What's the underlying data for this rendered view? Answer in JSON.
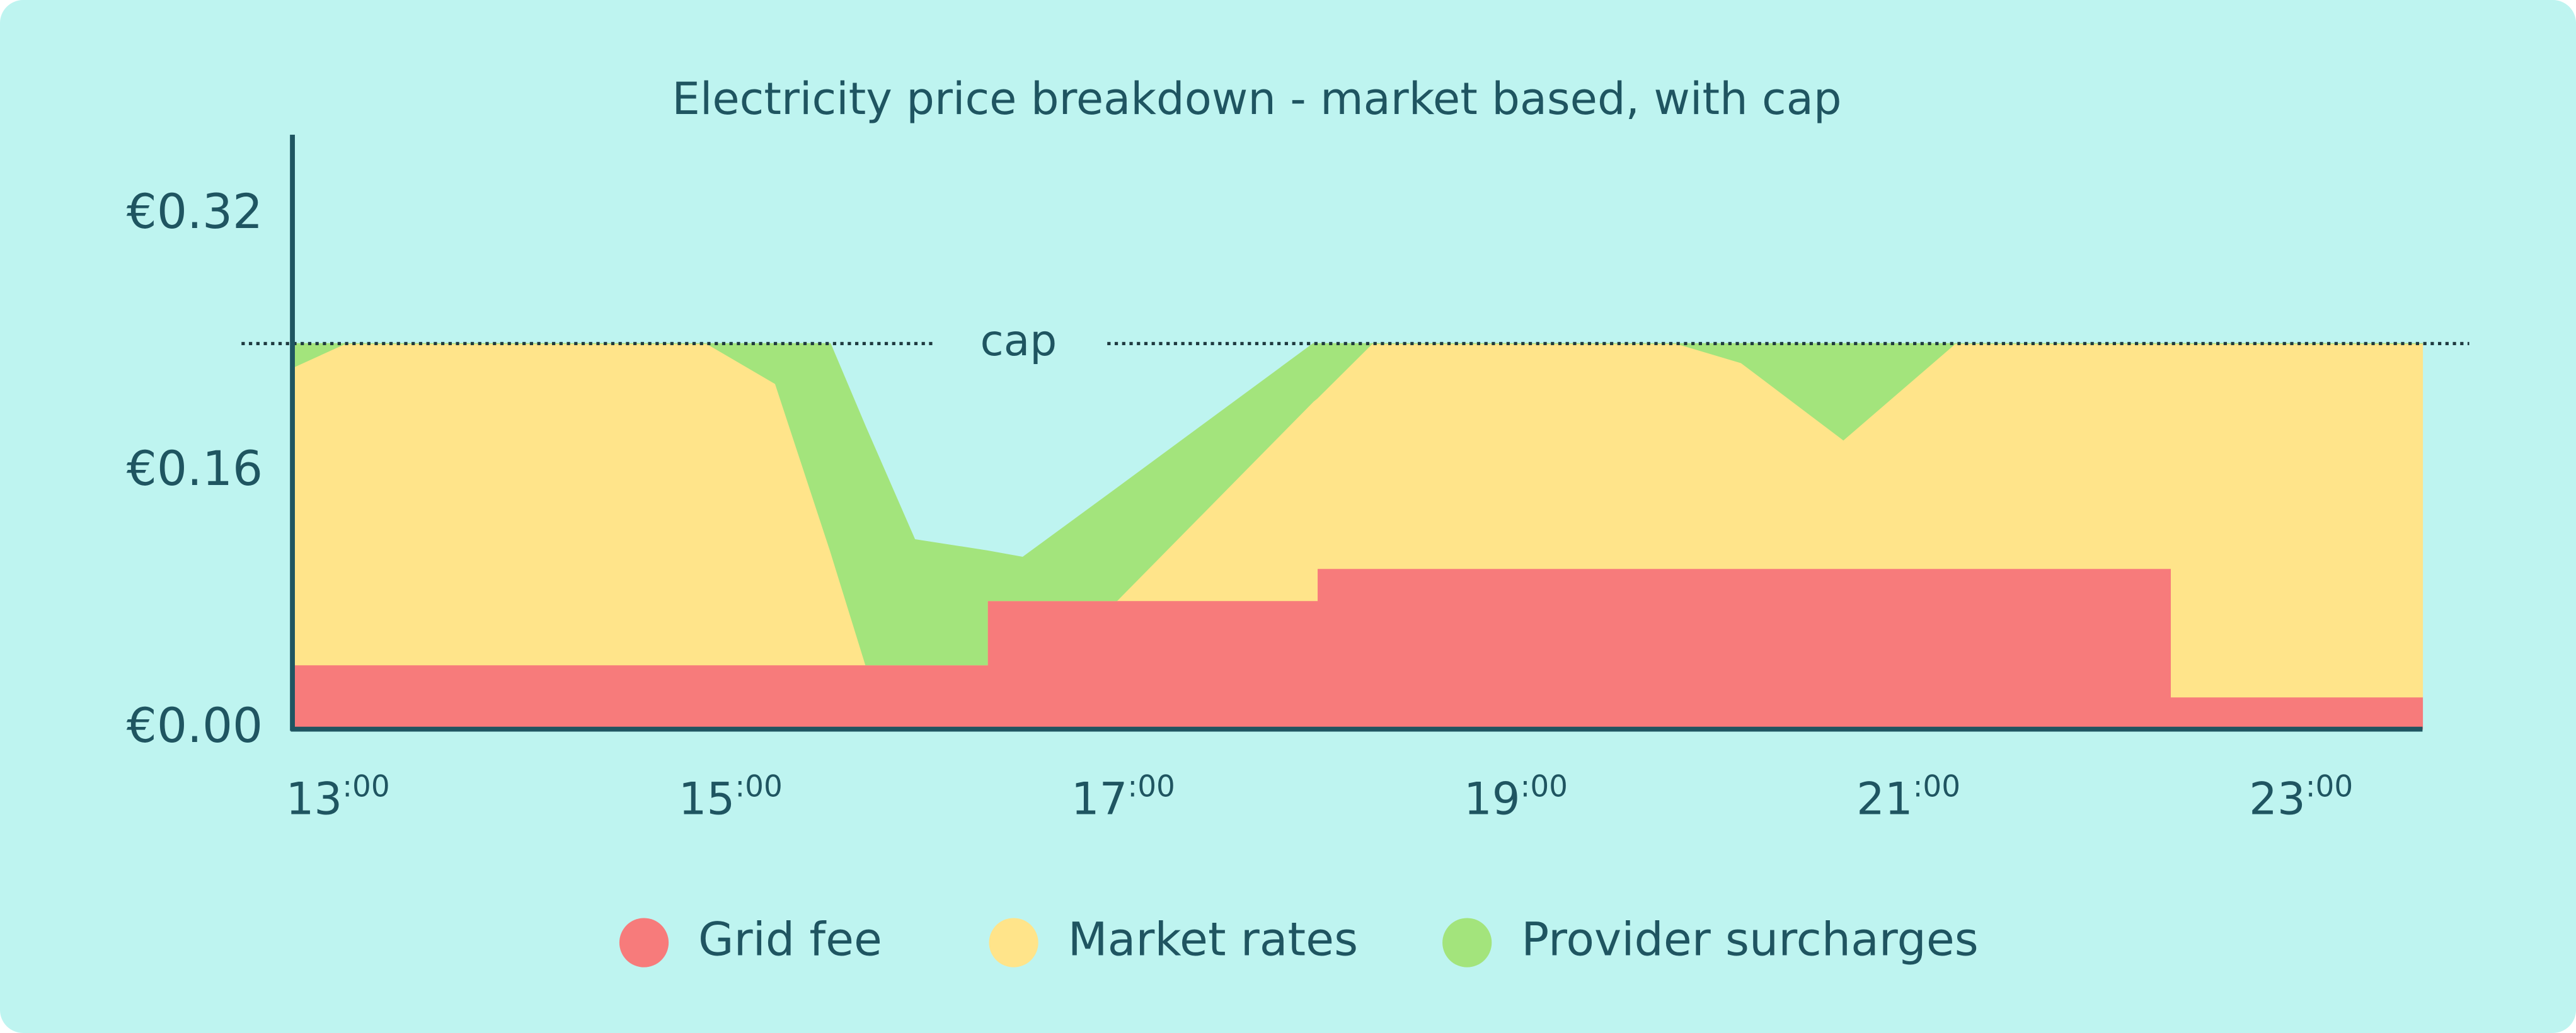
{
  "chart_data": {
    "type": "stacked-area",
    "title": "Electricity price breakdown - market based, with cap",
    "x": [
      13.0,
      13.27,
      15.11,
      15.46,
      15.74,
      15.92,
      16.17,
      16.54,
      16.54,
      16.72,
      17.2,
      18.2,
      18.22,
      18.22,
      18.5,
      20.05,
      20.38,
      20.9,
      21.47,
      22.57,
      22.57,
      23.85
    ],
    "series": [
      {
        "name": "Grid fee",
        "color": "#f77b7b",
        "values": [
          0.04,
          0.04,
          0.04,
          0.04,
          0.04,
          0.04,
          0.04,
          0.04,
          0.08,
          0.08,
          0.08,
          0.08,
          0.08,
          0.1,
          0.1,
          0.1,
          0.1,
          0.1,
          0.1,
          0.1,
          0.02,
          0.02
        ]
      },
      {
        "name": "Market rates",
        "color": "#ffe48a",
        "values": [
          0.185,
          0.2,
          0.2,
          0.175,
          0.071,
          0,
          0,
          0,
          0,
          0,
          0,
          0.124,
          0.126,
          0.106,
          0.14,
          0.14,
          0.128,
          0.08,
          0.14,
          0.14,
          0.22,
          0.22
        ]
      },
      {
        "name": "Provider surcharges",
        "color": "#a3e47c",
        "values": [
          0.015,
          0,
          0,
          0.025,
          0.129,
          0.148,
          0.078,
          0.071,
          0.031,
          0.027,
          0.07,
          0.036,
          0.034,
          0.034,
          0,
          0,
          0.012,
          0.06,
          0,
          0,
          0,
          0
        ]
      }
    ],
    "xlim": [
      13,
      23.85
    ],
    "xticks": [
      {
        "value": 13,
        "label": "13:00"
      },
      {
        "value": 15,
        "label": "15:00"
      },
      {
        "value": 17,
        "label": "17:00"
      },
      {
        "value": 19,
        "label": "19:00"
      },
      {
        "value": 21,
        "label": "21:00"
      },
      {
        "value": 23,
        "label": "23:00"
      }
    ],
    "ylim": [
      0,
      0.37
    ],
    "yticks": [
      {
        "value": 0,
        "label": "€0.00"
      },
      {
        "value": 0.16,
        "label": "€0.16"
      },
      {
        "value": 0.32,
        "label": "€0.32"
      }
    ],
    "cap": {
      "value": 0.24,
      "label": "cap"
    },
    "grid": false,
    "legend": "bottom"
  }
}
